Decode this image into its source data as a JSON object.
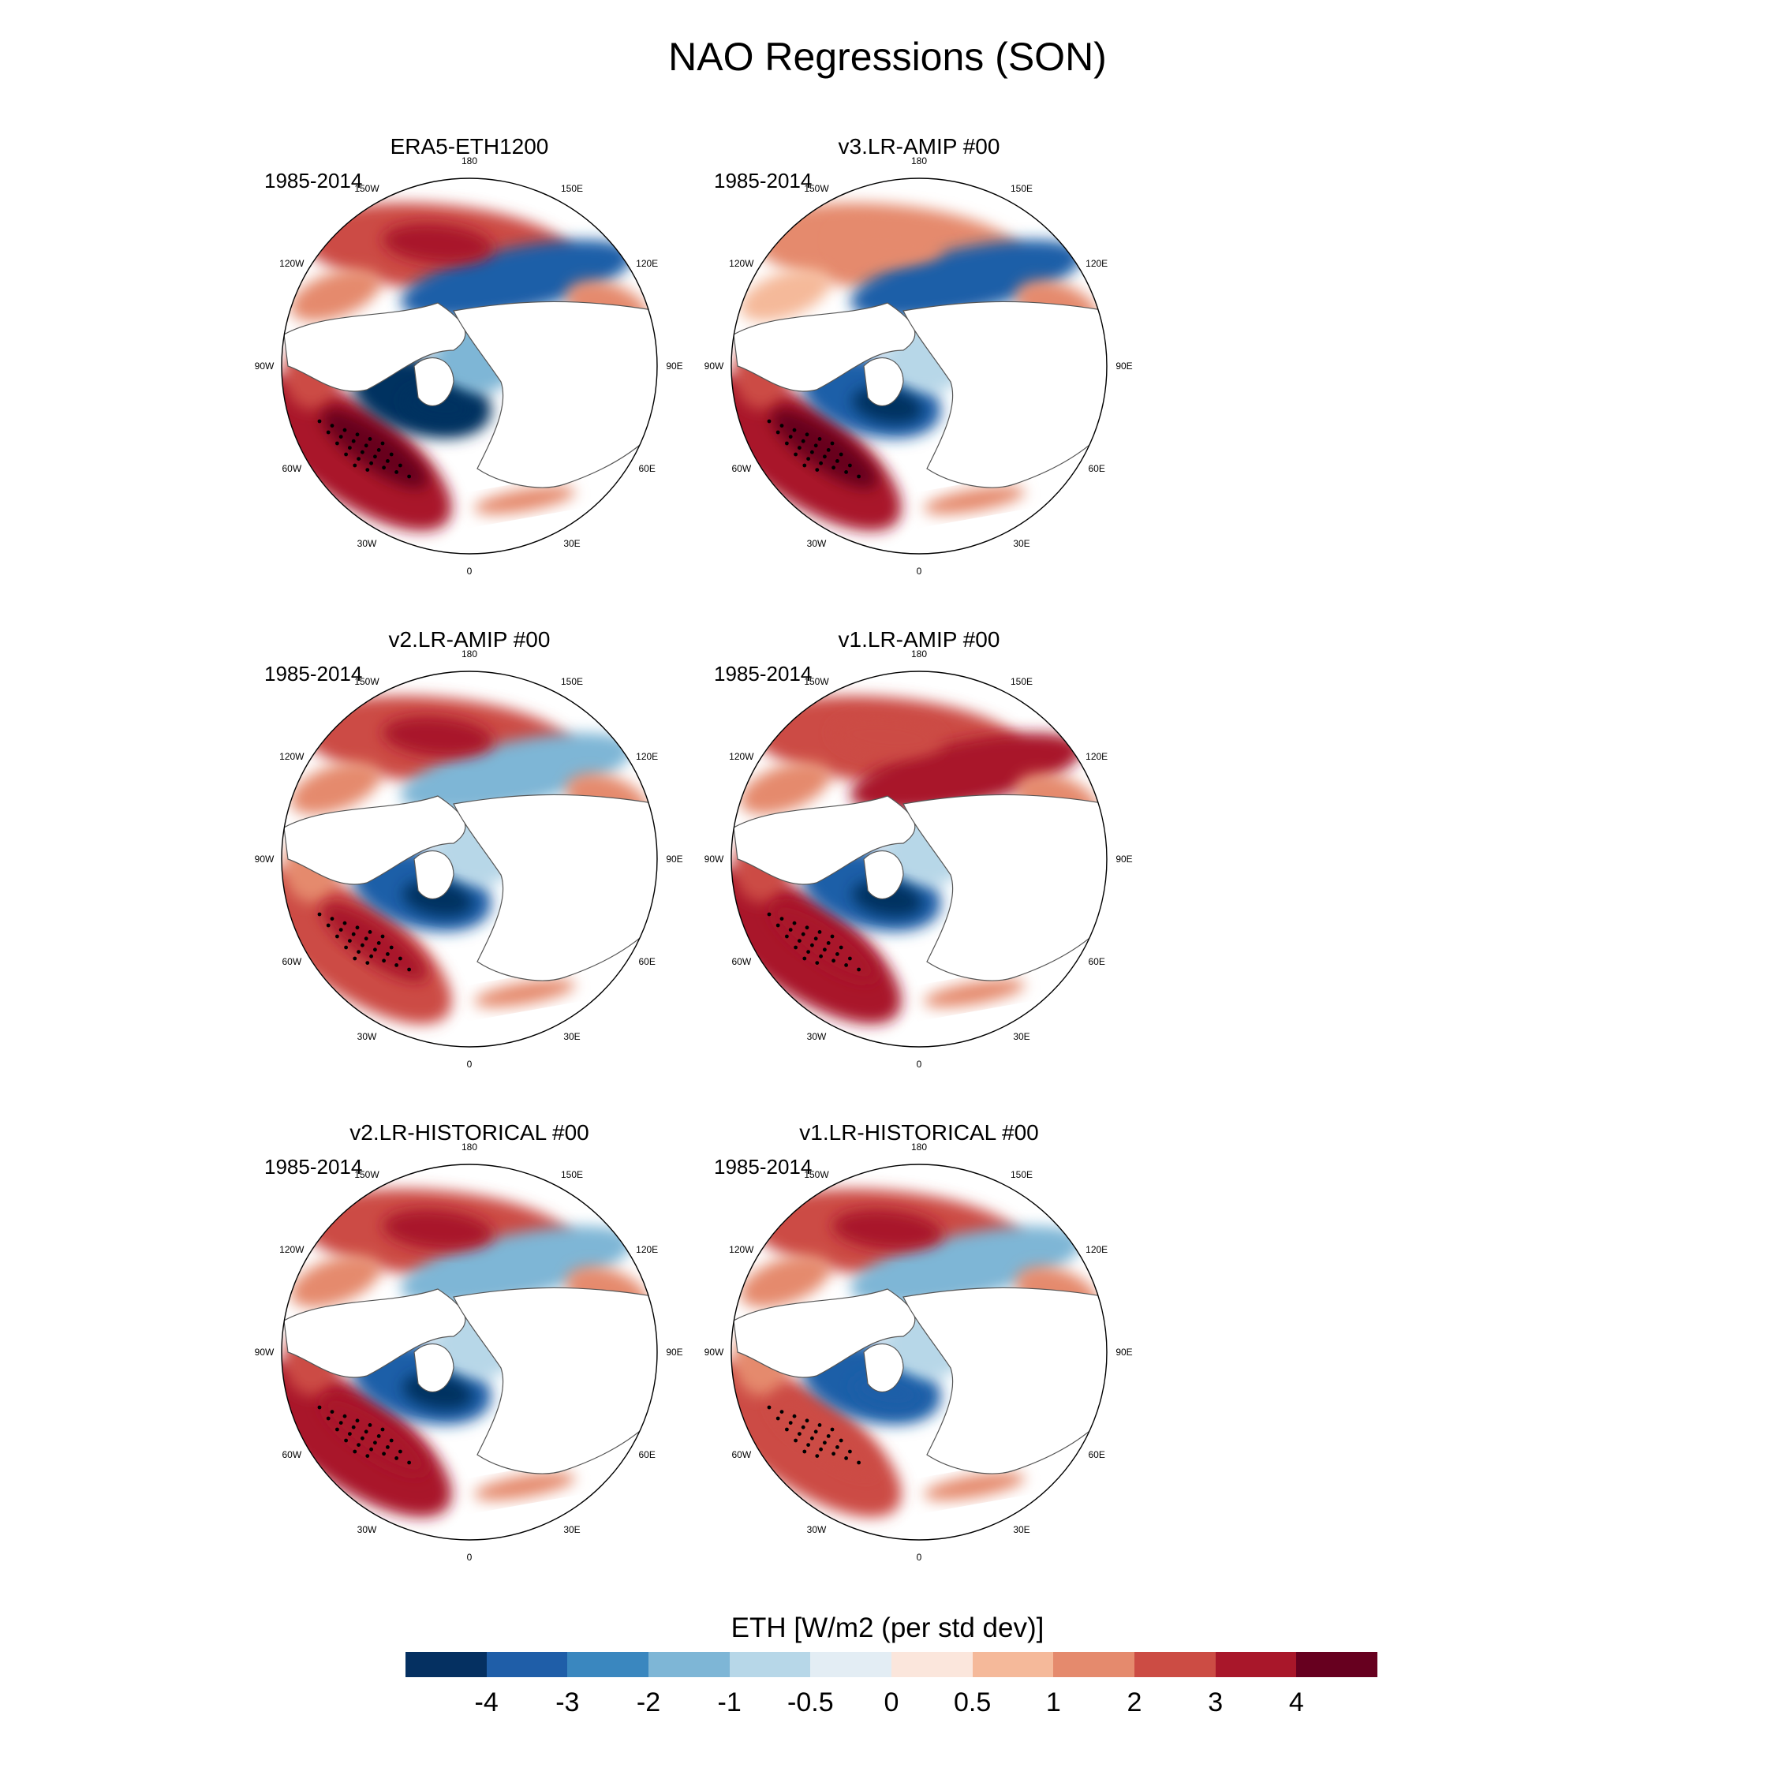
{
  "title": "NAO Regressions (SON)",
  "panels": [
    {
      "title": "ERA5-ETH1200",
      "period": "1985-2014",
      "pattern": [
        2.8,
        -3.5,
        3.6,
        -1.2,
        -4.2,
        1.5
      ]
    },
    {
      "title": "v3.LR-AMIP  #00",
      "period": "1985-2014",
      "pattern": [
        1.4,
        -3.8,
        3.3,
        -0.8,
        -3.5,
        1.0
      ]
    },
    {
      "title": "v2.LR-AMIP  #00",
      "period": "1985-2014",
      "pattern": [
        2.6,
        -2.0,
        2.5,
        -0.6,
        -3.8,
        1.2
      ]
    },
    {
      "title": "v1.LR-AMIP  #00",
      "period": "1985-2014",
      "pattern": [
        2.2,
        3.5,
        3.0,
        -1.0,
        -3.6,
        1.4
      ]
    },
    {
      "title": "v2.LR-HISTORICAL  #00",
      "period": "1985-2014",
      "pattern": [
        2.5,
        -1.5,
        3.0,
        -0.6,
        -3.8,
        1.2
      ]
    },
    {
      "title": "v1.LR-HISTORICAL  #00",
      "period": "1985-2014",
      "pattern": [
        2.8,
        -2.0,
        2.0,
        -0.8,
        -3.2,
        1.0
      ]
    }
  ],
  "longitude_labels": [
    "180",
    "150E",
    "120E",
    "90E",
    "60E",
    "30E",
    "0",
    "30W",
    "60W",
    "90W",
    "120W",
    "150W"
  ],
  "colorbar": {
    "title": "ETH [W/m2 (per std dev)]",
    "labels": [
      "-4",
      "-3",
      "-2",
      "-1",
      "-0.5",
      "0",
      "0.5",
      "1",
      "2",
      "3",
      "4"
    ],
    "levels": [
      -4,
      -3,
      -2,
      -1,
      -0.5,
      0,
      0.5,
      1,
      2,
      3,
      4
    ],
    "colors": [
      "#053061",
      "#1f5ea8",
      "#3a87bf",
      "#7eb6d6",
      "#b7d7e8",
      "#e3edf4",
      "#fbe6dc",
      "#f5b99a",
      "#e58a6d",
      "#cc4c44",
      "#a9172a",
      "#67001f"
    ]
  }
}
